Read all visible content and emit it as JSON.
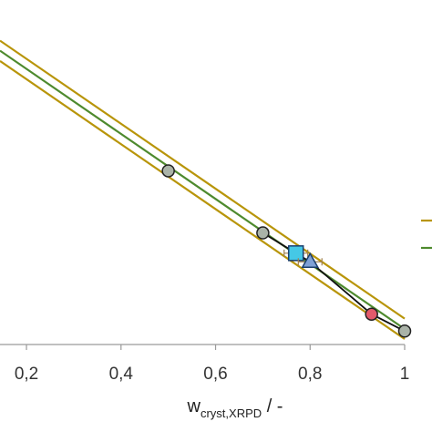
{
  "chart_data": {
    "type": "scatter",
    "title": "",
    "xlabel": {
      "main": "w",
      "subscript": "cryst,XRPD",
      "suffix": " / -"
    },
    "ylabel": "",
    "xlim": [
      0.144,
      1.0
    ],
    "ylim": [
      0,
      1
    ],
    "x_ticks": [
      "0,2",
      "0,4",
      "0,6",
      "0,8",
      "1"
    ],
    "x_tick_values": [
      0.2,
      0.4,
      0.6,
      0.8,
      1.0
    ],
    "grid": false,
    "legend": "right (entries cropped)",
    "series": [
      {
        "style": "line",
        "color": "#b8950a",
        "points": [
          [
            0.144,
            0.882
          ],
          [
            1.0,
            0.075
          ]
        ]
      },
      {
        "style": "line",
        "color": "#b8950a",
        "points": [
          [
            0.144,
            0.823
          ],
          [
            1.0,
            0.016
          ]
        ]
      },
      {
        "style": "line",
        "color": "#4e8a2e",
        "points": [
          [
            0.144,
            0.853
          ],
          [
            1.0,
            0.045
          ]
        ]
      },
      {
        "style": "line",
        "color": "#111111",
        "points": [
          [
            0.7,
            0.324
          ],
          [
            0.77,
            0.265
          ],
          [
            0.8,
            0.24
          ],
          [
            0.93,
            0.088
          ],
          [
            1.0,
            0.039
          ]
        ]
      },
      {
        "style": "marker",
        "marker": "circle",
        "fill": "#aab3a8",
        "points": [
          [
            0.5,
            0.504
          ],
          [
            0.7,
            0.324
          ],
          [
            1.0,
            0.039
          ]
        ],
        "xerr": [
          0.01,
          0.008,
          0
        ]
      },
      {
        "style": "marker",
        "marker": "square",
        "fill": "#45c8e6",
        "points": [
          [
            0.77,
            0.265
          ]
        ],
        "xerr": [
          0.025
        ]
      },
      {
        "style": "marker",
        "marker": "triangle",
        "fill": "#7fa1d6",
        "points": [
          [
            0.8,
            0.24
          ]
        ],
        "xerr": [
          0.025
        ]
      },
      {
        "style": "marker",
        "marker": "circle",
        "fill": "#e35a6b",
        "points": [
          [
            0.93,
            0.088
          ]
        ],
        "xerr": [
          0
        ]
      }
    ]
  },
  "legend_items": [
    {
      "color": "#b8950a"
    },
    {
      "color": "#4e8a2e"
    }
  ]
}
